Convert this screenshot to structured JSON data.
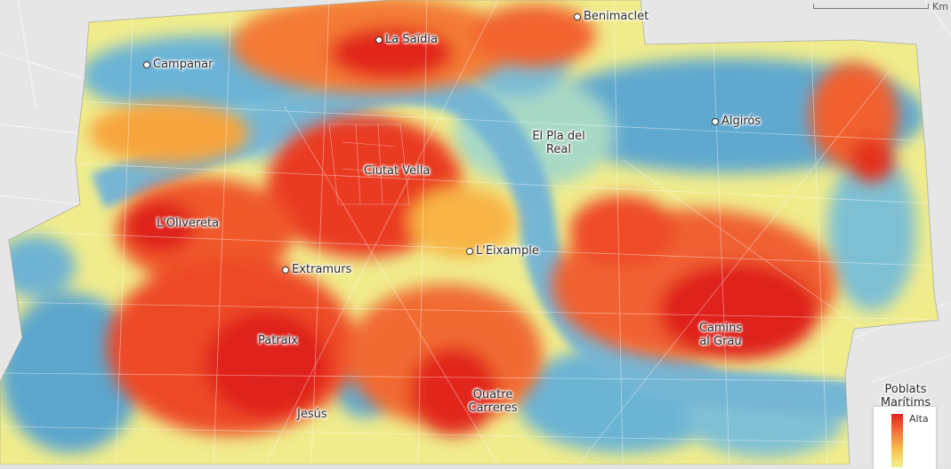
{
  "map": {
    "colors": {
      "high": "#e0241c",
      "mid_high": "#f6713a",
      "mid": "#f6c04a",
      "low_mid": "#f4f18a",
      "low": "#9fd8bf",
      "lowest": "#5da9d0",
      "river": "#78b7d6",
      "base": "#e4e4e4"
    },
    "labels": {
      "benimaclet": "Benimaclet",
      "la_saidia": "La Saïdia",
      "campanar": "Campanar",
      "algiros": "Algirós",
      "el_pla_del_real": "El Pla del Real",
      "ciutat_vella": "Ciutat Vella",
      "lolivereta": "L'Olivereta",
      "leixample": "L'Eixample",
      "extramurs": "Extramurs",
      "camins_al_grau": "Camins al Grau",
      "patraix": "Patraix",
      "poblats_maritims": "Poblats Marítims",
      "quatre_carreres": "Quatre Carreres",
      "jesus": "Jesús"
    },
    "scale_unit": "Km",
    "legend": {
      "high_label": "Alta"
    }
  }
}
